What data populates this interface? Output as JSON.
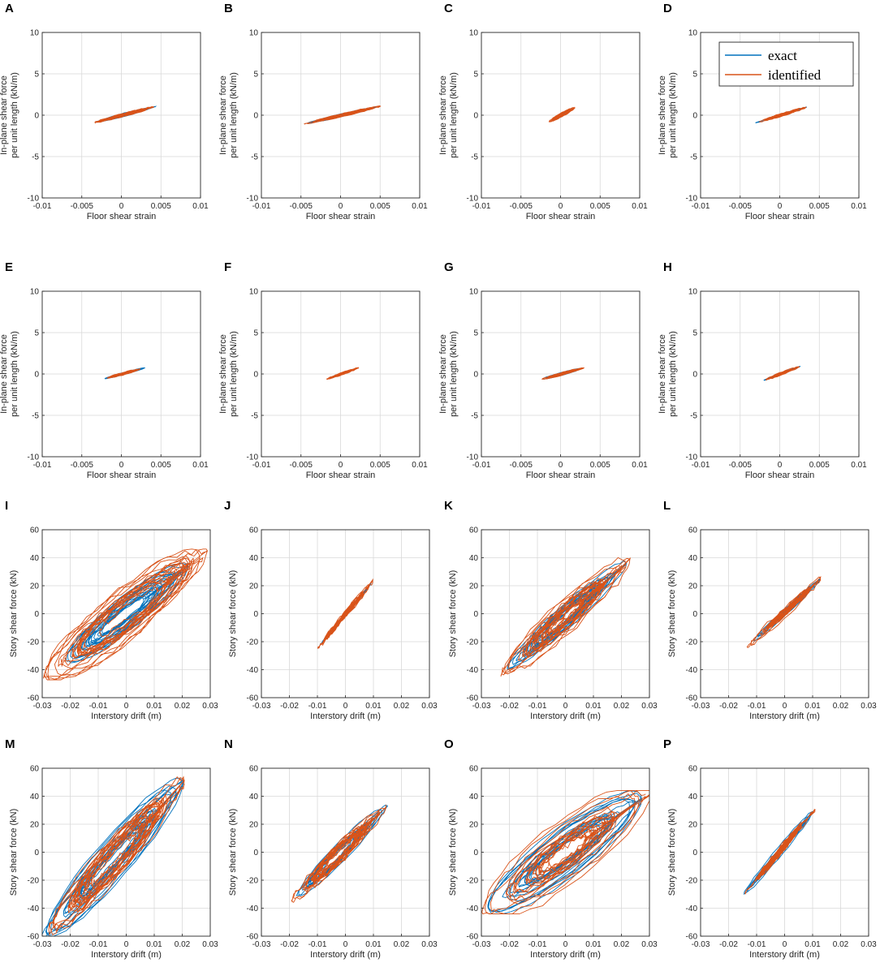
{
  "figure": {
    "legend": {
      "series": [
        {
          "name": "exact",
          "color": "#0072BD"
        },
        {
          "name": "identified",
          "color": "#D95319"
        }
      ]
    },
    "colors": {
      "exact": "#0072BD",
      "identified": "#D95319",
      "grid": "#d9d9d9",
      "axis": "#262626"
    }
  },
  "chart_data": [
    {
      "panel": "A",
      "type": "line",
      "xlabel": "Floor shear strain",
      "ylabel": [
        "In-plane shear force",
        "per unit length (kN/m)"
      ],
      "xlim": [
        -0.01,
        0.01
      ],
      "ylim": [
        -10,
        10
      ],
      "xticks": [
        -0.01,
        -0.005,
        0,
        0.005,
        0.01
      ],
      "yticks": [
        -10,
        -5,
        0,
        5,
        10
      ],
      "xtick_labels": [
        "-0.01",
        "-0.005",
        "0",
        "0.005",
        "0.01"
      ],
      "ytick_labels": [
        "-10",
        "-5",
        "0",
        "5",
        "10"
      ],
      "grid": true,
      "loop": {
        "strain_amp": 0.0045,
        "force_amp": 1.1,
        "width": 0.22,
        "cycles": 14
      }
    },
    {
      "panel": "B",
      "type": "line",
      "xlabel": "Floor shear strain",
      "ylabel": [
        "In-plane shear force",
        "per unit length (kN/m)"
      ],
      "xlim": [
        -0.01,
        0.01
      ],
      "ylim": [
        -10,
        10
      ],
      "xticks": [
        -0.01,
        -0.005,
        0,
        0.005,
        0.01
      ],
      "yticks": [
        -10,
        -5,
        0,
        5,
        10
      ],
      "xtick_labels": [
        "-0.01",
        "-0.005",
        "0",
        "0.005",
        "0.01"
      ],
      "ytick_labels": [
        "-10",
        "-5",
        "0",
        "5",
        "10"
      ],
      "grid": true,
      "loop": {
        "strain_amp": 0.0055,
        "force_amp": 1.2,
        "width": 0.15,
        "cycles": 14
      }
    },
    {
      "panel": "C",
      "type": "line",
      "xlabel": "Floor shear strain",
      "ylabel": [
        "In-plane shear force",
        "per unit length (kN/m)"
      ],
      "xlim": [
        -0.01,
        0.01
      ],
      "ylim": [
        -10,
        10
      ],
      "xticks": [
        -0.01,
        -0.005,
        0,
        0.005,
        0.01
      ],
      "yticks": [
        -10,
        -5,
        0,
        5,
        10
      ],
      "xtick_labels": [
        "-0.01",
        "-0.005",
        "0",
        "0.005",
        "0.01"
      ],
      "ytick_labels": [
        "-10",
        "-5",
        "0",
        "5",
        "10"
      ],
      "grid": true,
      "loop": {
        "strain_amp": 0.0018,
        "force_amp": 0.9,
        "width": 0.25,
        "cycles": 12
      }
    },
    {
      "panel": "D",
      "type": "line",
      "xlabel": "Floor shear strain",
      "ylabel": [
        "In-plane shear force",
        "per unit length (kN/m)"
      ],
      "xlim": [
        -0.01,
        0.01
      ],
      "ylim": [
        -10,
        10
      ],
      "xticks": [
        -0.01,
        -0.005,
        0,
        0.005,
        0.01
      ],
      "yticks": [
        -10,
        -5,
        0,
        5,
        10
      ],
      "xtick_labels": [
        "-0.01",
        "-0.005",
        "0",
        "0.005",
        "0.01"
      ],
      "ytick_labels": [
        "-10",
        "-5",
        "0",
        "5",
        "10"
      ],
      "grid": true,
      "show_legend": true,
      "loop": {
        "strain_amp": 0.0035,
        "force_amp": 1.0,
        "width": 0.18,
        "cycles": 12
      }
    },
    {
      "panel": "E",
      "type": "line",
      "xlabel": "Floor shear strain",
      "ylabel": [
        "In-plane shear force",
        "per unit length (kN/m)"
      ],
      "xlim": [
        -0.01,
        0.01
      ],
      "ylim": [
        -10,
        10
      ],
      "xticks": [
        -0.01,
        -0.005,
        0,
        0.005,
        0.01
      ],
      "yticks": [
        -10,
        -5,
        0,
        5,
        10
      ],
      "xtick_labels": [
        "-0.01",
        "-0.005",
        "0",
        "0.005",
        "0.01"
      ],
      "ytick_labels": [
        "-10",
        "-5",
        "0",
        "5",
        "10"
      ],
      "grid": true,
      "loop": {
        "strain_amp": 0.0032,
        "force_amp": 0.8,
        "width": 0.25,
        "cycles": 12
      }
    },
    {
      "panel": "F",
      "type": "line",
      "xlabel": "Floor shear strain",
      "ylabel": [
        "In-plane shear force",
        "per unit length (kN/m)"
      ],
      "xlim": [
        -0.01,
        0.01
      ],
      "ylim": [
        -10,
        10
      ],
      "xticks": [
        -0.01,
        -0.005,
        0,
        0.005,
        0.01
      ],
      "yticks": [
        -10,
        -5,
        0,
        5,
        10
      ],
      "xtick_labels": [
        "-0.01",
        "-0.005",
        "0",
        "0.005",
        "0.01"
      ],
      "ytick_labels": [
        "-10",
        "-5",
        "0",
        "5",
        "10"
      ],
      "grid": true,
      "loop": {
        "strain_amp": 0.0027,
        "force_amp": 0.9,
        "width": 0.15,
        "cycles": 12
      }
    },
    {
      "panel": "G",
      "type": "line",
      "xlabel": "Floor shear strain",
      "ylabel": [
        "In-plane shear force",
        "per unit length (kN/m)"
      ],
      "xlim": [
        -0.01,
        0.01
      ],
      "ylim": [
        -10,
        10
      ],
      "xticks": [
        -0.01,
        -0.005,
        0,
        0.005,
        0.01
      ],
      "yticks": [
        -10,
        -5,
        0,
        5,
        10
      ],
      "xtick_labels": [
        "-0.01",
        "-0.005",
        "0",
        "0.005",
        "0.01"
      ],
      "ytick_labels": [
        "-10",
        "-5",
        "0",
        "5",
        "10"
      ],
      "grid": true,
      "loop": {
        "strain_amp": 0.0028,
        "force_amp": 0.7,
        "width": 0.22,
        "cycles": 12
      }
    },
    {
      "panel": "H",
      "type": "line",
      "xlabel": "Floor shear strain",
      "ylabel": [
        "In-plane shear force",
        "per unit length (kN/m)"
      ],
      "xlim": [
        -0.01,
        0.01
      ],
      "ylim": [
        -10,
        10
      ],
      "xticks": [
        -0.01,
        -0.005,
        0,
        0.005,
        0.01
      ],
      "yticks": [
        -10,
        -5,
        0,
        5,
        10
      ],
      "xtick_labels": [
        "-0.01",
        "-0.005",
        "0",
        "0.005",
        "0.01"
      ],
      "ytick_labels": [
        "-10",
        "-5",
        "0",
        "5",
        "10"
      ],
      "grid": true,
      "loop": {
        "strain_amp": 0.0025,
        "force_amp": 0.9,
        "width": 0.15,
        "cycles": 12
      }
    },
    {
      "panel": "I",
      "type": "line",
      "xlabel": "Interstory drift (m)",
      "ylabel": [
        "Story shear force (kN)"
      ],
      "xlim": [
        -0.03,
        0.03
      ],
      "ylim": [
        -60,
        60
      ],
      "xticks": [
        -0.03,
        -0.02,
        -0.01,
        0,
        0.01,
        0.02,
        0.03
      ],
      "yticks": [
        -60,
        -40,
        -20,
        0,
        20,
        40,
        60
      ],
      "xtick_labels": [
        "-0.03",
        "-0.02",
        "-0.01",
        "0",
        "0.01",
        "0.02",
        "0.03"
      ],
      "ytick_labels": [
        "-60",
        "-40",
        "-20",
        "0",
        "20",
        "40",
        "60"
      ],
      "grid": true,
      "loop": {
        "drift_range": [
          -0.03,
          0.029
        ],
        "force_range": [
          -45,
          44
        ],
        "width": 0.35,
        "cycles": 18
      }
    },
    {
      "panel": "J",
      "type": "line",
      "xlabel": "Interstory drift (m)",
      "ylabel": [
        "Story shear force (kN)"
      ],
      "xlim": [
        -0.03,
        0.03
      ],
      "ylim": [
        -60,
        60
      ],
      "xticks": [
        -0.03,
        -0.02,
        -0.01,
        0,
        0.01,
        0.02,
        0.03
      ],
      "yticks": [
        -60,
        -40,
        -20,
        0,
        20,
        40,
        60
      ],
      "xtick_labels": [
        "-0.03",
        "-0.02",
        "-0.01",
        "0",
        "0.01",
        "0.02",
        "0.03"
      ],
      "ytick_labels": [
        "-60",
        "-40",
        "-20",
        "0",
        "20",
        "40",
        "60"
      ],
      "grid": true,
      "loop": {
        "drift_range": [
          -0.011,
          0.011
        ],
        "force_range": [
          -27,
          26
        ],
        "width": 0.06,
        "cycles": 14
      }
    },
    {
      "panel": "K",
      "type": "line",
      "xlabel": "Interstory drift (m)",
      "ylabel": [
        "Story shear force (kN)"
      ],
      "xlim": [
        -0.03,
        0.03
      ],
      "ylim": [
        -60,
        60
      ],
      "xticks": [
        -0.03,
        -0.02,
        -0.01,
        0,
        0.01,
        0.02,
        0.03
      ],
      "yticks": [
        -60,
        -40,
        -20,
        0,
        20,
        40,
        60
      ],
      "xtick_labels": [
        "-0.03",
        "-0.02",
        "-0.01",
        "0",
        "0.01",
        "0.02",
        "0.03"
      ],
      "ytick_labels": [
        "-60",
        "-40",
        "-20",
        "0",
        "20",
        "40",
        "60"
      ],
      "grid": true,
      "loop": {
        "drift_range": [
          -0.024,
          0.023
        ],
        "force_range": [
          -44,
          38
        ],
        "width": 0.3,
        "cycles": 18
      }
    },
    {
      "panel": "L",
      "type": "line",
      "xlabel": "Interstory drift (m)",
      "ylabel": [
        "Story shear force (kN)"
      ],
      "xlim": [
        -0.03,
        0.03
      ],
      "ylim": [
        -60,
        60
      ],
      "xticks": [
        -0.03,
        -0.02,
        -0.01,
        0,
        0.01,
        0.02,
        0.03
      ],
      "yticks": [
        -60,
        -40,
        -20,
        0,
        20,
        40,
        60
      ],
      "xtick_labels": [
        "-0.03",
        "-0.02",
        "-0.01",
        "0",
        "0.01",
        "0.02",
        "0.03"
      ],
      "ytick_labels": [
        "-60",
        "-40",
        "-20",
        "0",
        "20",
        "40",
        "60"
      ],
      "grid": true,
      "loop": {
        "drift_range": [
          -0.013,
          0.014
        ],
        "force_range": [
          -23,
          27
        ],
        "width": 0.1,
        "cycles": 14
      }
    },
    {
      "panel": "M",
      "type": "line",
      "xlabel": "Interstory drift (m)",
      "ylabel": [
        "Story shear force (kN)"
      ],
      "xlim": [
        -0.03,
        0.03
      ],
      "ylim": [
        -60,
        60
      ],
      "xticks": [
        -0.03,
        -0.02,
        -0.01,
        0,
        0.01,
        0.02,
        0.03
      ],
      "yticks": [
        -60,
        -40,
        -20,
        0,
        20,
        40,
        60
      ],
      "xtick_labels": [
        "-0.03",
        "-0.02",
        "-0.01",
        "0",
        "0.01",
        "0.02",
        "0.03"
      ],
      "ytick_labels": [
        "-60",
        "-40",
        "-20",
        "0",
        "20",
        "40",
        "60"
      ],
      "grid": true,
      "loop": {
        "drift_range": [
          -0.03,
          0.021
        ],
        "force_range": [
          -60,
          51
        ],
        "width": 0.3,
        "cycles": 18
      }
    },
    {
      "panel": "N",
      "type": "line",
      "xlabel": "Interstory drift (m)",
      "ylabel": [
        "Story shear force (kN)"
      ],
      "xlim": [
        -0.03,
        0.03
      ],
      "ylim": [
        -60,
        60
      ],
      "xticks": [
        -0.03,
        -0.02,
        -0.01,
        0,
        0.01,
        0.02,
        0.03
      ],
      "yticks": [
        -60,
        -40,
        -20,
        0,
        20,
        40,
        60
      ],
      "xtick_labels": [
        "-0.03",
        "-0.02",
        "-0.01",
        "0",
        "0.01",
        "0.02",
        "0.03"
      ],
      "ytick_labels": [
        "-60",
        "-40",
        "-20",
        "0",
        "20",
        "40",
        "60"
      ],
      "grid": true,
      "loop": {
        "drift_range": [
          -0.02,
          0.015
        ],
        "force_range": [
          -36,
          33
        ],
        "width": 0.25,
        "cycles": 16
      }
    },
    {
      "panel": "O",
      "type": "line",
      "xlabel": "Interstory drift (m)",
      "ylabel": [
        "Story shear force (kN)"
      ],
      "xlim": [
        -0.03,
        0.03
      ],
      "ylim": [
        -60,
        60
      ],
      "xticks": [
        -0.03,
        -0.02,
        -0.01,
        0,
        0.01,
        0.02,
        0.03
      ],
      "yticks": [
        -60,
        -40,
        -20,
        0,
        20,
        40,
        60
      ],
      "xtick_labels": [
        "-0.03",
        "-0.02",
        "-0.01",
        "0",
        "0.01",
        "0.02",
        "0.03"
      ],
      "ytick_labels": [
        "-60",
        "-40",
        "-20",
        "0",
        "20",
        "40",
        "60"
      ],
      "grid": true,
      "loop": {
        "drift_range": [
          -0.03,
          0.03
        ],
        "force_range": [
          -42,
          42
        ],
        "width": 0.45,
        "cycles": 18
      }
    },
    {
      "panel": "P",
      "type": "line",
      "xlabel": "Interstory drift (m)",
      "ylabel": [
        "Story shear force (kN)"
      ],
      "xlim": [
        -0.03,
        0.03
      ],
      "ylim": [
        -60,
        60
      ],
      "xticks": [
        -0.03,
        -0.02,
        -0.01,
        0,
        0.01,
        0.02,
        0.03
      ],
      "yticks": [
        -60,
        -40,
        -20,
        0,
        20,
        40,
        60
      ],
      "xtick_labels": [
        "-0.03",
        "-0.02",
        "-0.01",
        "0",
        "0.01",
        "0.02",
        "0.03"
      ],
      "ytick_labels": [
        "-60",
        "-40",
        "-20",
        "0",
        "20",
        "40",
        "60"
      ],
      "grid": true,
      "loop": {
        "drift_range": [
          -0.015,
          0.011
        ],
        "force_range": [
          -31,
          31
        ],
        "width": 0.1,
        "cycles": 14
      }
    }
  ]
}
